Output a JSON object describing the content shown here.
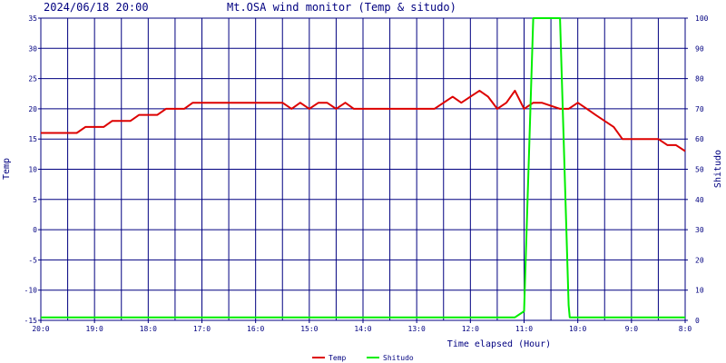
{
  "header": {
    "timestamp": "2024/06/18 20:00",
    "title": "Mt.OSA wind monitor (Temp & situdo)"
  },
  "chart_data": {
    "type": "line",
    "title": "Mt.OSA wind monitor (Temp & situdo)",
    "xlabel": "Time elapsed (Hour)",
    "ylabel": "Temp",
    "y2label": "Shitudo",
    "x_ticks": [
      "20:0",
      "19:0",
      "18:0",
      "17:0",
      "16:0",
      "15:0",
      "14:0",
      "13:0",
      "12:0",
      "11:0",
      "10:0",
      "9:0",
      "8:0"
    ],
    "x_tick_hours": [
      0,
      1,
      2,
      3,
      4,
      5,
      6,
      7,
      8,
      9,
      10,
      11,
      12
    ],
    "xlim": [
      0,
      12
    ],
    "ylim": [
      -15,
      35
    ],
    "y_ticks": [
      -15,
      -10,
      -5,
      0,
      5,
      10,
      15,
      20,
      25,
      30,
      35
    ],
    "y2lim": [
      0,
      100
    ],
    "y2_ticks": [
      0,
      10,
      20,
      30,
      40,
      50,
      60,
      70,
      80,
      90,
      100
    ],
    "grid": true,
    "legend_placement": "bottom-center",
    "colors": {
      "background": "#ffffff",
      "grid": "#000080",
      "temp": "#dd0000",
      "shitudo": "#00ee00",
      "text": "#000080"
    },
    "series": [
      {
        "name": "Temp",
        "axis": "left",
        "x": [
          0,
          0.67,
          0.83,
          1.17,
          1.33,
          1.67,
          1.83,
          2.17,
          2.33,
          2.67,
          2.83,
          3.17,
          3.33,
          4.5,
          4.67,
          4.83,
          5.0,
          5.17,
          5.33,
          5.5,
          5.67,
          5.83,
          6.0,
          6.17,
          7.33,
          7.5,
          7.67,
          7.83,
          8.0,
          8.17,
          8.33,
          8.5,
          8.67,
          8.83,
          9.0,
          9.17,
          9.33,
          9.67,
          9.83,
          10.0,
          10.17,
          10.33,
          10.67,
          10.83,
          11.0,
          11.17,
          11.5,
          11.67,
          11.83,
          12.0
        ],
        "values": [
          16,
          16,
          17,
          17,
          18,
          18,
          19,
          19,
          20,
          20,
          21,
          21,
          21,
          21,
          20,
          21,
          20,
          21,
          21,
          20,
          21,
          20,
          20,
          20,
          20,
          21,
          22,
          21,
          22,
          23,
          22,
          20,
          21,
          23,
          20,
          21,
          21,
          20,
          20,
          21,
          20,
          19,
          17,
          15,
          15,
          15,
          15,
          14,
          14,
          13
        ]
      },
      {
        "name": "Shitudo",
        "axis": "right",
        "x": [
          0,
          8.83,
          9.0,
          9.17,
          9.67,
          9.83,
          9.85,
          12.0
        ],
        "values": [
          1,
          1,
          3,
          100,
          100,
          5,
          1,
          1
        ]
      }
    ]
  },
  "legend": {
    "items": [
      {
        "label": "Temp",
        "color": "#dd0000"
      },
      {
        "label": "Shitudo",
        "color": "#00ee00"
      }
    ]
  }
}
